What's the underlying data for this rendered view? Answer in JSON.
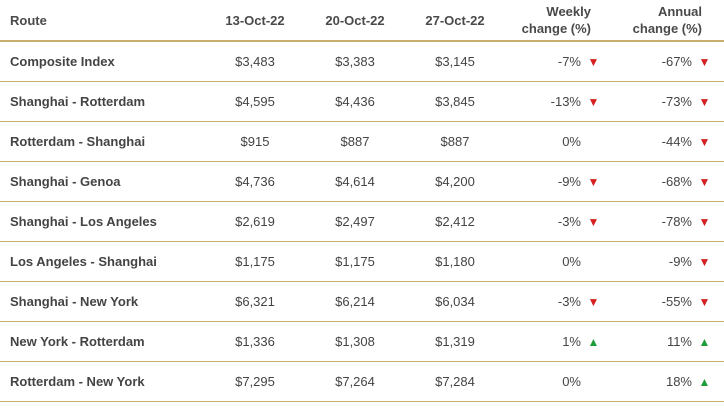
{
  "table": {
    "headers": {
      "route": "Route",
      "dates": [
        "13-Oct-22",
        "20-Oct-22",
        "27-Oct-22"
      ],
      "weekly_line1": "Weekly",
      "weekly_line2": "change (%)",
      "annual_line1": "Annual",
      "annual_line2": "change (%)"
    },
    "rows": [
      {
        "route": "Composite Index",
        "v1": "$3,483",
        "v2": "$3,383",
        "v3": "$3,145",
        "weekly": "-7%",
        "weekly_dir": "down",
        "annual": "-67%",
        "annual_dir": "down"
      },
      {
        "route": "Shanghai - Rotterdam",
        "v1": "$4,595",
        "v2": "$4,436",
        "v3": "$3,845",
        "weekly": "-13%",
        "weekly_dir": "down",
        "annual": "-73%",
        "annual_dir": "down"
      },
      {
        "route": "Rotterdam - Shanghai",
        "v1": "$915",
        "v2": "$887",
        "v3": "$887",
        "weekly": "0%",
        "weekly_dir": "none",
        "annual": "-44%",
        "annual_dir": "down"
      },
      {
        "route": "Shanghai - Genoa",
        "v1": "$4,736",
        "v2": "$4,614",
        "v3": "$4,200",
        "weekly": "-9%",
        "weekly_dir": "down",
        "annual": "-68%",
        "annual_dir": "down"
      },
      {
        "route": "Shanghai - Los Angeles",
        "v1": "$2,619",
        "v2": "$2,497",
        "v3": "$2,412",
        "weekly": "-3%",
        "weekly_dir": "down",
        "annual": "-78%",
        "annual_dir": "down"
      },
      {
        "route": "Los Angeles - Shanghai",
        "v1": "$1,175",
        "v2": "$1,175",
        "v3": "$1,180",
        "weekly": "0%",
        "weekly_dir": "none",
        "annual": "-9%",
        "annual_dir": "down"
      },
      {
        "route": "Shanghai - New York",
        "v1": "$6,321",
        "v2": "$6,214",
        "v3": "$6,034",
        "weekly": "-3%",
        "weekly_dir": "down",
        "annual": "-55%",
        "annual_dir": "down"
      },
      {
        "route": "New York - Rotterdam",
        "v1": "$1,336",
        "v2": "$1,308",
        "v3": "$1,319",
        "weekly": "1%",
        "weekly_dir": "up",
        "annual": "11%",
        "annual_dir": "up"
      },
      {
        "route": "Rotterdam - New York",
        "v1": "$7,295",
        "v2": "$7,264",
        "v3": "$7,284",
        "weekly": "0%",
        "weekly_dir": "none",
        "annual": "18%",
        "annual_dir": "up"
      }
    ]
  },
  "icons": {
    "down": "triangle-down",
    "up": "triangle-up"
  },
  "colors": {
    "rule": "#c8ad6d",
    "down": "#d62020",
    "up": "#1f9d3a"
  }
}
